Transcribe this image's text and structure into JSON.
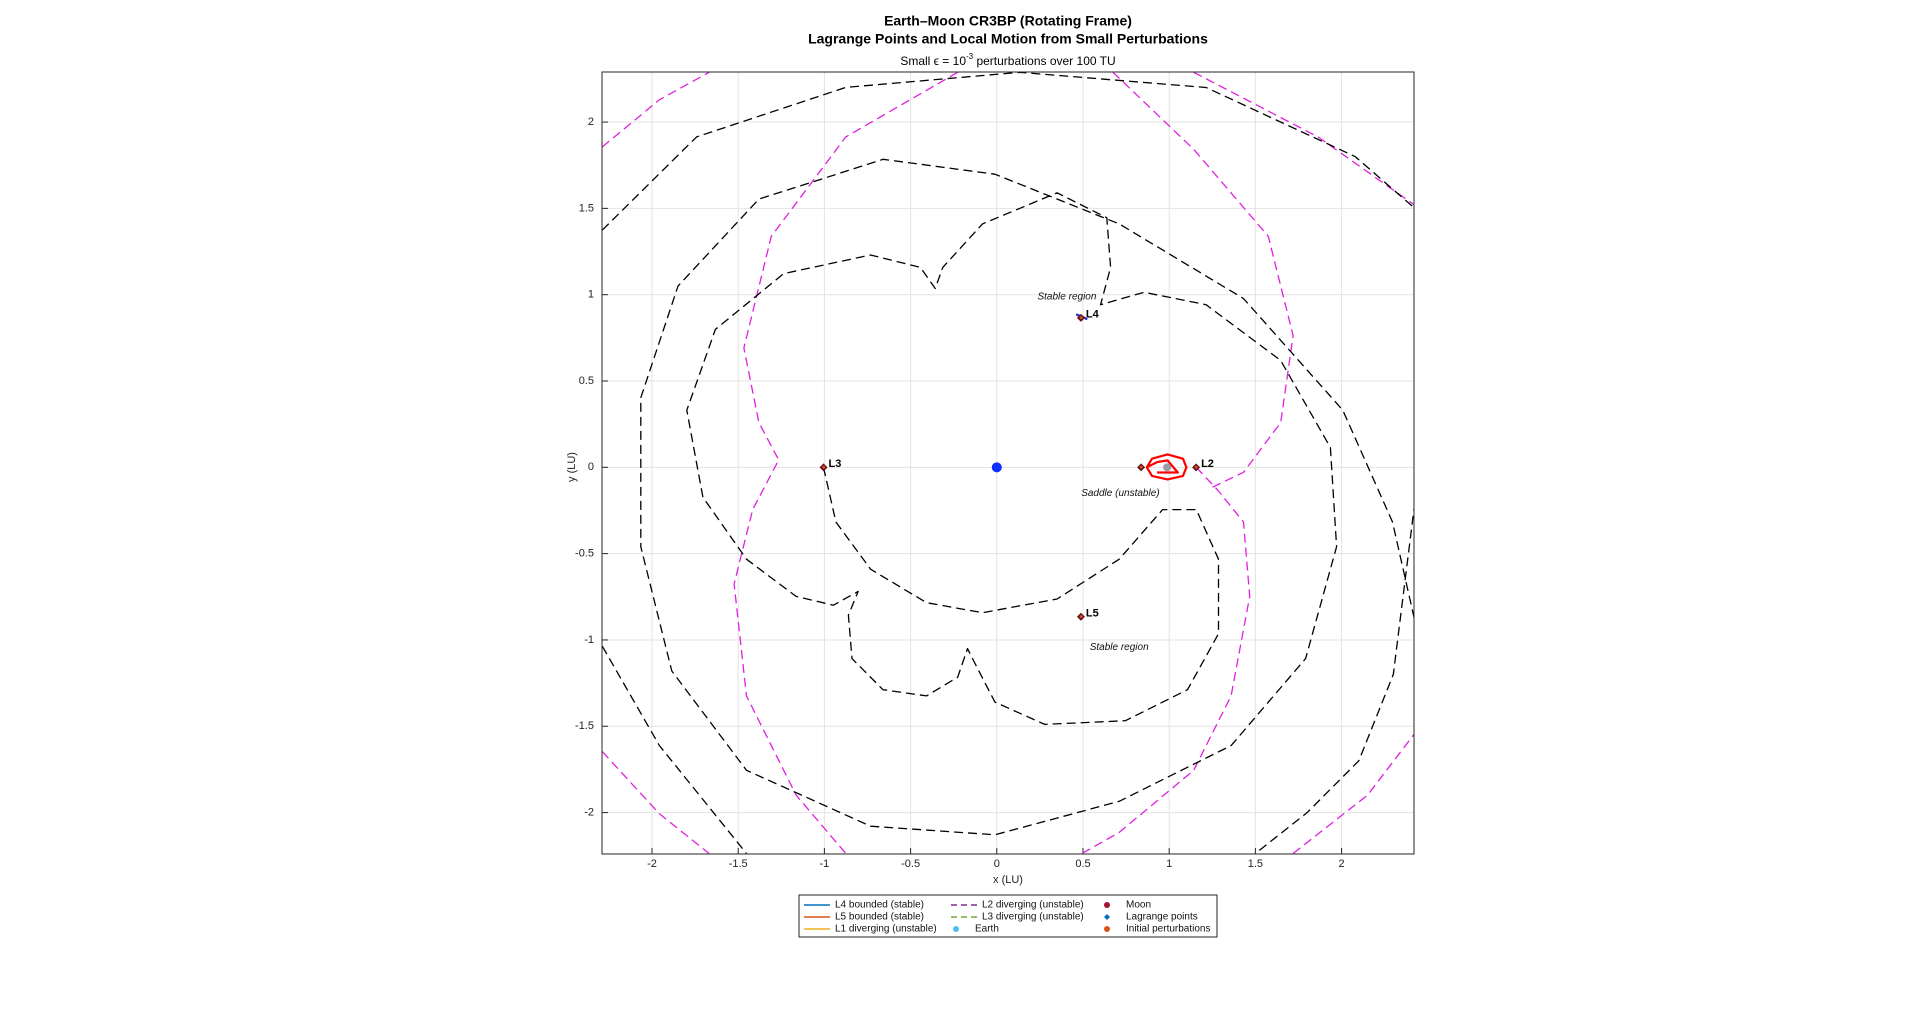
{
  "chart_data": {
    "type": "line",
    "title": [
      "Earth–Moon CR3BP (Rotating Frame)",
      "Lagrange Points and Local Motion from Small Perturbations"
    ],
    "subtitle": [
      "Small ϵ = 10",
      "-3",
      " perturbations over 100 TU"
    ],
    "xlabel": "x (LU)",
    "ylabel": "y (LU)",
    "xlim": [
      -2.29,
      2.42
    ],
    "ylim": [
      -2.24,
      2.29
    ],
    "xticks": [
      -2,
      -1.5,
      -1,
      -0.5,
      0,
      0.5,
      1,
      1.5,
      2
    ],
    "yticks": [
      -2,
      -1.5,
      -1,
      -0.5,
      0,
      0.5,
      1,
      1.5,
      2
    ],
    "grid": true,
    "legend": "bottom",
    "series": [
      {
        "name": "L4 bounded (stable)",
        "color": "#1f2fd0",
        "legend_color": "#0072bd",
        "dash": false,
        "x": [
          0.46,
          0.49,
          0.52,
          0.5,
          0.46
        ],
        "y": [
          0.885,
          0.875,
          0.86,
          0.87,
          0.885
        ]
      },
      {
        "name": "L5 bounded (stable)",
        "color": "#1f2fd0",
        "legend_color": "#d95319",
        "dash": false,
        "x": [
          0.485,
          0.495,
          0.5
        ],
        "y": [
          -0.862,
          -0.868,
          -0.872
        ]
      },
      {
        "name": "L1 diverging (unstable)",
        "color": "#ff0000",
        "legend_color": "#edb120",
        "dash": false,
        "x": [
          0.87,
          0.9,
          0.99,
          1.08,
          1.1,
          1.08,
          0.99,
          0.9,
          0.87,
          0.93,
          0.99,
          1.05,
          0.93
        ],
        "y": [
          0,
          0.05,
          0.075,
          0.05,
          0,
          -0.05,
          -0.07,
          -0.05,
          0,
          0.03,
          0.04,
          -0.03,
          -0.03
        ]
      },
      {
        "name": "L2 diverging (unstable)",
        "color": "#e020e0",
        "legend_color": "#7e2f8e",
        "dash": true,
        "x": [
          1.157,
          1.286,
          1.431,
          1.467,
          1.359,
          1.142,
          0.71,
          0.494,
          null,
          0.674,
          1.142,
          1.575,
          1.719,
          1.647,
          1.431,
          1.251,
          null,
          -0.227,
          -0.876,
          -1.308,
          -1.467,
          -1.38,
          -1.265,
          -1.416,
          -1.524,
          -1.452,
          -1.164,
          -0.876,
          null,
          -2.288,
          -1.957,
          -1.669,
          null,
          1.142,
          1.863,
          2.425,
          null,
          1.719,
          2.151,
          2.425,
          null,
          -2.288,
          -1.957,
          -1.669
        ],
        "y": [
          0,
          -0.137,
          -0.317,
          -0.748,
          -1.324,
          -1.755,
          -2.115,
          -2.237,
          null,
          2.288,
          1.842,
          1.338,
          0.763,
          0.259,
          -0.029,
          -0.115,
          null,
          2.288,
          1.914,
          1.338,
          0.691,
          0.259,
          0.043,
          -0.245,
          -0.676,
          -1.324,
          -1.899,
          -2.237,
          null,
          1.856,
          2.129,
          2.288,
          null,
          2.288,
          1.914,
          1.518,
          null,
          -2.237,
          -1.899,
          -1.54,
          null,
          -1.647,
          -2.007,
          -2.237
        ]
      },
      {
        "name": "L3 diverging (unstable)",
        "color": "#000000",
        "legend_color": "#77ac30",
        "dash": true,
        "x": [
          -1.005,
          -0.933,
          -0.732,
          -0.407,
          -0.083,
          0.35,
          0.71,
          0.962,
          1.157,
          1.286,
          1.286,
          1.106,
          0.746,
          0.278,
          -0.011,
          -0.141,
          -0.17,
          -0.227,
          -0.407,
          -0.66,
          -0.84,
          -0.861,
          -0.804,
          -0.948,
          -1.164,
          -1.452,
          -1.705,
          -1.798,
          -1.632,
          -1.236,
          -0.732,
          -0.443,
          -0.357,
          -0.313,
          -0.083,
          0.35,
          0.638,
          0.66,
          0.602,
          0.854,
          1.214,
          1.647,
          1.935,
          1.971,
          1.791,
          1.359,
          0.71,
          -0.011,
          -0.732,
          -1.452,
          -1.885,
          -2.065,
          -2.065,
          -1.849,
          -1.38,
          -0.659,
          -0.011,
          0.71,
          1.431,
          2.007,
          2.295,
          2.425,
          null,
          -2.288,
          -1.741,
          -0.876,
          0.133,
          1.214,
          2.079,
          2.425,
          null,
          -2.288,
          -1.957,
          -1.452,
          null,
          2.425,
          2.3,
          2.1,
          1.8,
          1.5
        ],
        "y": [
          0,
          -0.317,
          -0.59,
          -0.784,
          -0.842,
          -0.763,
          -0.532,
          -0.245,
          -0.245,
          -0.532,
          -0.964,
          -1.288,
          -1.468,
          -1.489,
          -1.36,
          -1.108,
          -1.05,
          -1.216,
          -1.324,
          -1.288,
          -1.108,
          -0.856,
          -0.719,
          -0.799,
          -0.748,
          -0.532,
          -0.173,
          0.331,
          0.799,
          1.122,
          1.23,
          1.158,
          1.036,
          1.158,
          1.41,
          1.59,
          1.446,
          1.158,
          0.942,
          1.014,
          0.942,
          0.619,
          0.115,
          -0.46,
          -1.108,
          -1.612,
          -1.935,
          -2.129,
          -2.079,
          -1.755,
          -1.18,
          -0.46,
          0.403,
          1.05,
          1.554,
          1.784,
          1.698,
          1.41,
          0.978,
          0.331,
          -0.317,
          -0.892,
          null,
          1.374,
          1.914,
          2.201,
          2.288,
          2.2,
          1.8,
          1.5,
          null,
          -1.036,
          -1.612,
          -2.237,
          null,
          -0.2,
          -1.2,
          -1.7,
          -2.0,
          -2.237
        ]
      }
    ],
    "points": [
      {
        "name": "Earth",
        "color": "#1030ff",
        "legend_color": "#4dbeee",
        "marker": "circle",
        "size": 5,
        "x": [
          0
        ],
        "y": [
          0
        ]
      },
      {
        "name": "Moon",
        "color": "#9a9aa8",
        "legend_color": "#a2142f",
        "marker": "circle",
        "size": 4,
        "x": [
          0.988
        ],
        "y": [
          0
        ]
      },
      {
        "name": "Lagrange points",
        "color": "#601020",
        "legend_color": "#0072bd",
        "marker": "diamond",
        "size": 4,
        "x": [
          0.837,
          1.156,
          -1.005,
          0.488,
          0.488
        ],
        "y": [
          0,
          0,
          0,
          0.866,
          -0.866
        ],
        "labels": [
          null,
          "L2",
          "L3",
          "L4",
          "L5"
        ]
      },
      {
        "name": "Initial perturbations",
        "color": "#d95319",
        "legend_color": "#d95319",
        "marker": "circle",
        "size": 1.5,
        "x": [
          0.838,
          1.157,
          -1.004,
          0.489,
          0.489
        ],
        "y": [
          0.001,
          0.001,
          0.001,
          0.867,
          -0.865
        ]
      }
    ],
    "annotations": [
      {
        "text": "Stable region",
        "x": 0.407,
        "y": 0.986
      },
      {
        "text": "Saddle (unstable)",
        "x": 0.717,
        "y": -0.151
      },
      {
        "text": "Stable region",
        "x": 0.71,
        "y": -1.043
      }
    ]
  }
}
